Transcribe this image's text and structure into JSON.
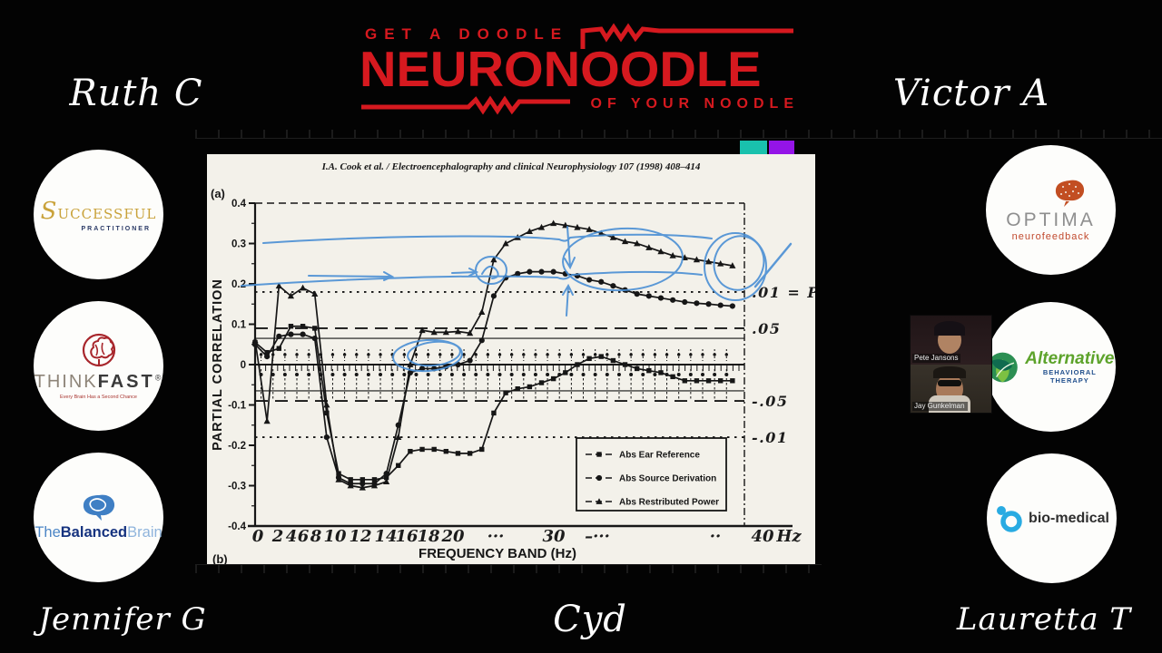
{
  "logo": {
    "line1": "GET A DOODLE",
    "line2": "NEURONOODLE",
    "line3": "OF YOUR NOODLE",
    "color": "#d6191f"
  },
  "participants": {
    "top_left": "Ruth C",
    "top_right": "Victor A",
    "bottom_left": "Jennifer G",
    "bottom_center": "Cyd",
    "bottom_right": "Lauretta T"
  },
  "webcam": {
    "top_label": "Pete Jansons",
    "bottom_label": "Jay Gunkelman"
  },
  "whiteboard": {
    "swatches": [
      {
        "name": "teal",
        "color": "#19c1ad"
      },
      {
        "name": "purple",
        "color": "#9414e7"
      }
    ]
  },
  "sponsors": {
    "successful": {
      "word1": "S",
      "word1b": "UCCESSFUL",
      "word2": "PRACTITIONER"
    },
    "thinkfast": {
      "think": "THINK",
      "fast": "FAST",
      "reg": "®",
      "tagline": "Every Brain Has a Second Chance"
    },
    "balancedbrain": {
      "t1": "The",
      "t2": "Balanced",
      "t3": "Brain"
    },
    "optima": {
      "name": "OPTIMA",
      "sub": "neurofeedback"
    },
    "alternative": {
      "name": "Alternative",
      "sub": "BEHAVIORAL THERAPY"
    },
    "biomedical": {
      "name": "bio-medical"
    }
  },
  "chart_data": {
    "type": "line",
    "title": "I.A. Cook et al. / Electroencephalography and clinical Neurophysiology 107 (1998) 408–414",
    "panel_label_top": "(a)",
    "panel_label_bottom": "(b)",
    "xlabel": "FREQUENCY BAND (Hz)",
    "ylabel": "PARTIAL CORRELATION",
    "xlim": [
      0,
      41
    ],
    "ylim": [
      -0.4,
      0.4
    ],
    "grid": false,
    "legend_position": "bottom-right",
    "y_ticks": [
      "0.4",
      "0.3",
      "0.2",
      "0.1",
      "0",
      "-0.1",
      "-0.2",
      "-0.3",
      "-0.4"
    ],
    "y_tick_values": [
      0.4,
      0.3,
      0.2,
      0.1,
      0,
      -0.1,
      -0.2,
      -0.3,
      -0.4
    ],
    "x_tick_labels": [
      "0",
      "2",
      "4",
      "6",
      "8",
      "10",
      "12",
      "14",
      "16",
      "18",
      "20",
      "···",
      "30",
      "–···",
      "··",
      "40",
      "Hz"
    ],
    "significance_lines": [
      {
        "value": 0.18,
        "style": "dotted",
        "label": ".01 = P"
      },
      {
        "value": 0.09,
        "style": "dashed",
        "label": ".05"
      },
      {
        "value": 0.065,
        "style": "solid",
        "label": ""
      },
      {
        "value": -0.065,
        "style": "solid",
        "label": ""
      },
      {
        "value": -0.09,
        "style": "dashed",
        "label": "-.05"
      },
      {
        "value": -0.18,
        "style": "dotted",
        "label": "-.01"
      }
    ],
    "frequencies": [
      0,
      1,
      2,
      3,
      4,
      5,
      6,
      7,
      8,
      9,
      10,
      11,
      12,
      13,
      14,
      15,
      16,
      17,
      18,
      19,
      20,
      21,
      22,
      23,
      24,
      25,
      26,
      27,
      28,
      29,
      30,
      31,
      32,
      33,
      34,
      35,
      36,
      37,
      38,
      39,
      40
    ],
    "series": [
      {
        "name": "Abs Ear Reference",
        "marker": "square",
        "values": [
          0.055,
          0.03,
          0.04,
          0.095,
          0.095,
          0.09,
          -0.12,
          -0.27,
          -0.285,
          -0.285,
          -0.285,
          -0.28,
          -0.25,
          -0.215,
          -0.21,
          -0.21,
          -0.215,
          -0.22,
          -0.22,
          -0.21,
          -0.12,
          -0.07,
          -0.06,
          -0.055,
          -0.045,
          -0.035,
          -0.02,
          0.0,
          0.015,
          0.02,
          0.01,
          0.0,
          -0.01,
          -0.015,
          -0.02,
          -0.03,
          -0.04,
          -0.04,
          -0.04,
          -0.04,
          -0.04
        ]
      },
      {
        "name": "Abs Source Derivation",
        "marker": "circle",
        "values": [
          0.05,
          0.02,
          0.07,
          0.075,
          0.075,
          0.065,
          -0.18,
          -0.28,
          -0.295,
          -0.295,
          -0.295,
          -0.27,
          -0.15,
          -0.02,
          -0.01,
          -0.01,
          -0.005,
          0.0,
          0.01,
          0.06,
          0.17,
          0.215,
          0.225,
          0.23,
          0.23,
          0.23,
          0.225,
          0.22,
          0.21,
          0.205,
          0.195,
          0.185,
          0.175,
          0.17,
          0.165,
          0.16,
          0.155,
          0.152,
          0.15,
          0.147,
          0.145
        ]
      },
      {
        "name": "Abs Restributed Power",
        "marker": "triangle",
        "values": [
          0.06,
          -0.14,
          0.195,
          0.17,
          0.19,
          0.175,
          -0.1,
          -0.285,
          -0.3,
          -0.305,
          -0.3,
          -0.29,
          -0.18,
          0.0,
          0.085,
          0.08,
          0.08,
          0.082,
          0.078,
          0.13,
          0.26,
          0.3,
          0.315,
          0.33,
          0.34,
          0.35,
          0.345,
          0.34,
          0.335,
          0.325,
          0.315,
          0.305,
          0.3,
          0.29,
          0.28,
          0.27,
          0.265,
          0.26,
          0.255,
          0.25,
          0.245
        ]
      }
    ],
    "annotation_color": "#4a8fd4"
  }
}
